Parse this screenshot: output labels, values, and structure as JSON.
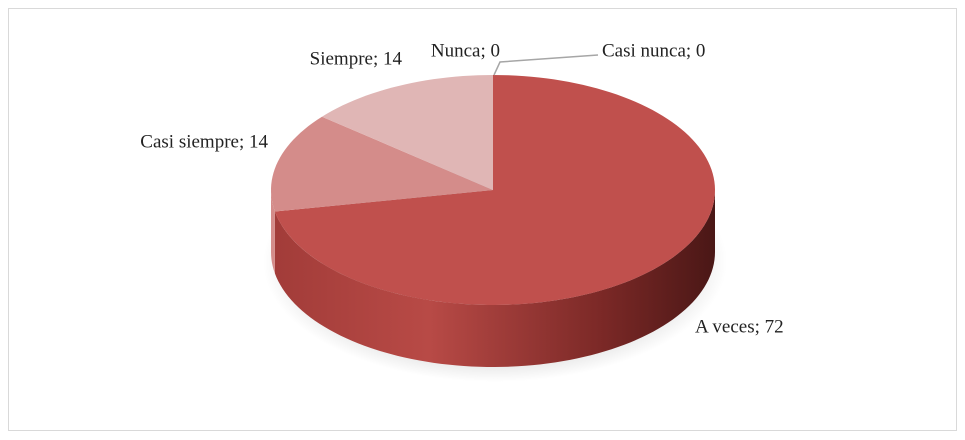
{
  "chart_data": {
    "type": "pie3d",
    "labels": [
      "Nunca; 0",
      "Casi nunca; 0",
      "A veces; 72",
      "Casi siempre; 14",
      "Siempre; 14"
    ],
    "values": [
      0,
      0,
      72,
      14,
      14
    ],
    "colors": [
      "#9bbb59",
      "#8064a2",
      "#c0504d",
      "#d48c8a",
      "#e0b6b5"
    ]
  }
}
